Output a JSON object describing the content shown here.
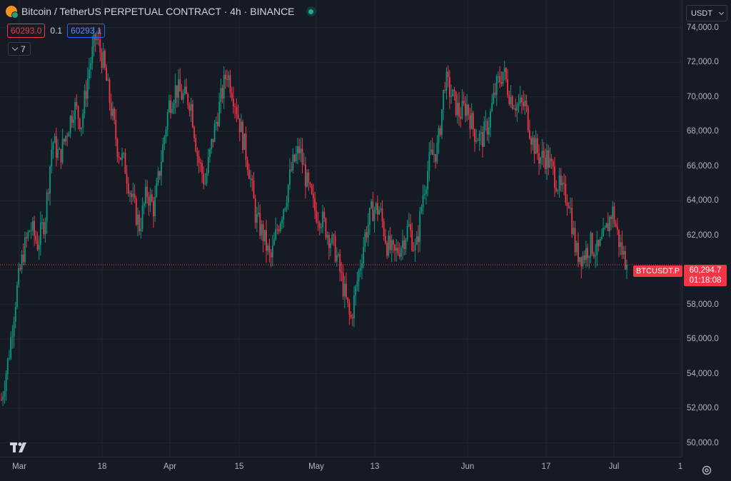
{
  "header": {
    "title": "Bitcoin / TetherUS PERPETUAL CONTRACT · 4h · BINANCE",
    "symbol_icon": "bitcoin-usdt-icon",
    "status_icon": "market-open-dot-icon"
  },
  "quote": {
    "bid": "60293.0",
    "spread": "0.1",
    "ask": "60293.1"
  },
  "indicators": {
    "count": "7",
    "toggle_icon": "chevron-down-icon"
  },
  "currency": {
    "selected": "USDT"
  },
  "price_scale": {
    "labels": [
      "74,000.0",
      "72,000.0",
      "70,000.0",
      "68,000.0",
      "66,000.0",
      "64,000.0",
      "62,000.0",
      "58,000.0",
      "56,000.0",
      "54,000.0",
      "52,000.0",
      "50,000.0"
    ],
    "last_price": "60,294.7",
    "countdown": "01:18:08",
    "symbol_tag": "BTCUSDT.P"
  },
  "time_scale": {
    "labels": [
      "Mar",
      "18",
      "Apr",
      "15",
      "May",
      "13",
      "Jun",
      "17",
      "Jul",
      "1"
    ]
  },
  "colors": {
    "background": "#161a25",
    "grid": "#232632",
    "up": "#089981",
    "down": "#f23645",
    "last_price": "#f23645"
  },
  "chart_data": {
    "type": "candlestick",
    "title": "Bitcoin / TetherUS PERPETUAL CONTRACT · 4h · BINANCE",
    "y_unit": "USDT",
    "ylim": [
      49200,
      75600
    ],
    "x_ticks": [
      "Mar",
      "18",
      "Apr",
      "15",
      "May",
      "13",
      "Jun",
      "17",
      "Jul",
      "1"
    ],
    "y_ticks": [
      50000,
      52000,
      54000,
      56000,
      58000,
      62000,
      64000,
      66000,
      68000,
      70000,
      72000,
      74000
    ],
    "last_price": 60294.7,
    "close_path_approx": [
      52500,
      55000,
      58500,
      61000,
      62500,
      61500,
      63000,
      67500,
      66500,
      68000,
      69500,
      68500,
      71500,
      73500,
      72000,
      69500,
      67000,
      66000,
      64000,
      62500,
      64500,
      63500,
      66500,
      69500,
      70500,
      70000,
      69800,
      66500,
      65000,
      67500,
      69500,
      71500,
      70000,
      68000,
      66000,
      63000,
      62000,
      60500,
      62500,
      64000,
      66000,
      67000,
      65000,
      63500,
      63000,
      62000,
      61000,
      59000,
      57000,
      59500,
      62000,
      63500,
      63500,
      61500,
      60800,
      61500,
      62500,
      61000,
      64500,
      66500,
      67000,
      71000,
      70000,
      69000,
      69500,
      68000,
      67500,
      68500,
      70500,
      71500,
      70000,
      69500,
      69500,
      67500,
      66500,
      66500,
      65500,
      64500,
      64200,
      61000,
      60800,
      61500,
      61000,
      62000,
      63500,
      61500,
      60294.7
    ]
  }
}
